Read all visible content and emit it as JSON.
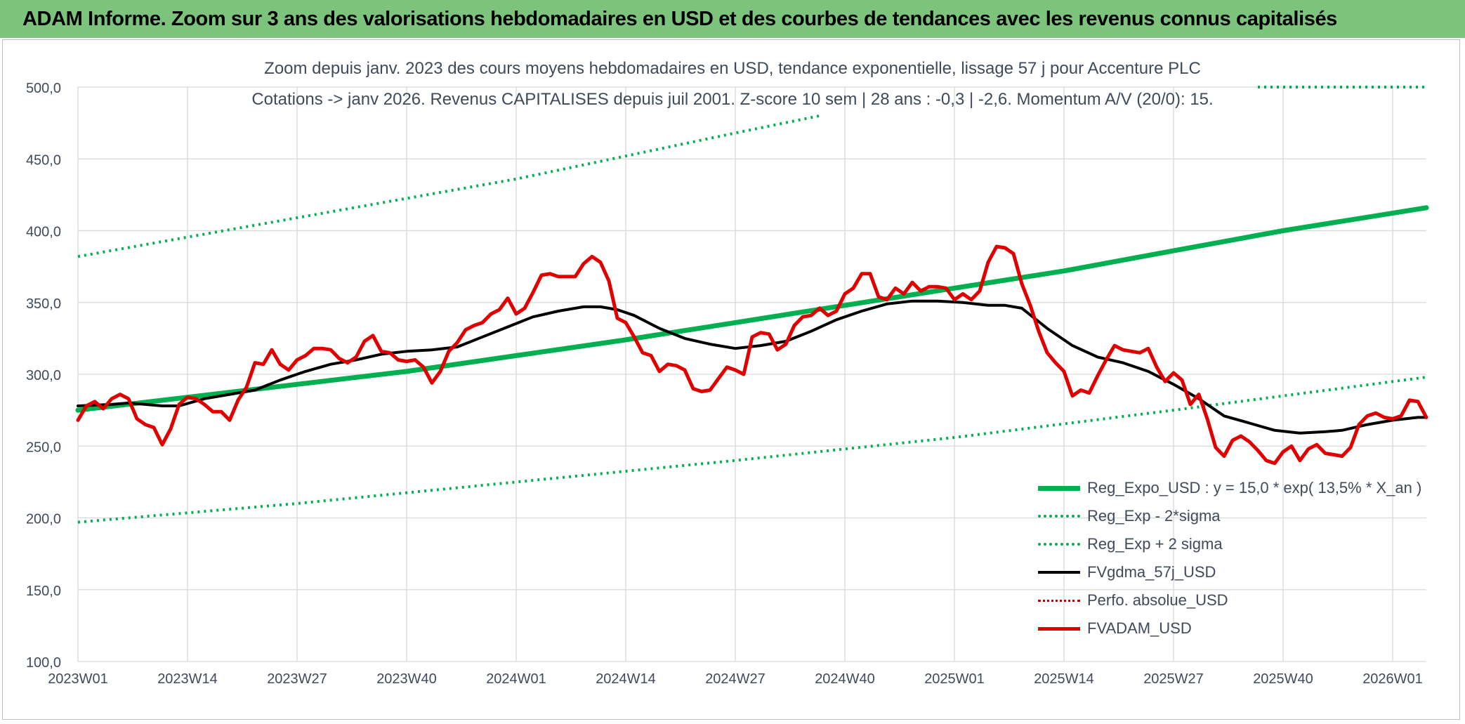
{
  "header": {
    "title": "ADAM Informe. Zoom sur 3 ans des valorisations hebdomadaires en USD et des courbes de tendances avec les revenus connus capitalisés"
  },
  "chart_data": {
    "type": "line",
    "title_line1": "Zoom depuis janv. 2023 des cours moyens hebdomadaires en USD, tendance exponentielle, lissage 57 j pour Accenture PLC",
    "title_line2": "Cotations -> janv 2026. Revenus CAPITALISES depuis juil 2001. Z-score 10 sem | 28 ans : -0,3 | -2,6. Momentum A/V (20/0): 15.",
    "ylim": [
      100,
      500
    ],
    "yticks": [
      100,
      150,
      200,
      250,
      300,
      350,
      400,
      450,
      500
    ],
    "ytick_labels": [
      "100,0",
      "150,0",
      "200,0",
      "250,0",
      "300,0",
      "350,0",
      "400,0",
      "450,0",
      "500,0"
    ],
    "x_ticks": [
      {
        "label": "2023W01",
        "week": 0
      },
      {
        "label": "2023W14",
        "week": 13
      },
      {
        "label": "2023W27",
        "week": 26
      },
      {
        "label": "2023W40",
        "week": 39
      },
      {
        "label": "2024W01",
        "week": 52
      },
      {
        "label": "2024W14",
        "week": 65
      },
      {
        "label": "2024W27",
        "week": 78
      },
      {
        "label": "2024W40",
        "week": 91
      },
      {
        "label": "2025W01",
        "week": 104
      },
      {
        "label": "2025W14",
        "week": 117
      },
      {
        "label": "2025W27",
        "week": 130
      },
      {
        "label": "2025W40",
        "week": 143
      },
      {
        "label": "2026W01",
        "week": 156
      }
    ],
    "x_range": [
      0,
      160
    ],
    "grid": true,
    "legend_position": "bottom-right",
    "series": [
      {
        "name": "Reg_Expo_USD : y = 15,0 * exp( 13,5% *  X_an )",
        "color": "#00b050",
        "style": "solid",
        "width": 7,
        "points": [
          [
            0,
            275
          ],
          [
            13,
            284
          ],
          [
            26,
            293
          ],
          [
            39,
            302
          ],
          [
            52,
            313
          ],
          [
            65,
            324
          ],
          [
            78,
            336
          ],
          [
            91,
            348
          ],
          [
            104,
            360
          ],
          [
            117,
            372
          ],
          [
            130,
            386
          ],
          [
            143,
            400
          ],
          [
            160,
            416
          ]
        ]
      },
      {
        "name": "Reg_Exp - 2*sigma",
        "color": "#00b050",
        "style": "dotted",
        "width": 4,
        "points": [
          [
            0,
            197
          ],
          [
            26,
            210
          ],
          [
            52,
            225
          ],
          [
            78,
            240
          ],
          [
            104,
            256
          ],
          [
            130,
            275
          ],
          [
            160,
            298
          ]
        ]
      },
      {
        "name": "Reg_Exp + 2 sigma",
        "color": "#00b050",
        "style": "dotted",
        "width": 4,
        "points": [
          [
            0,
            382
          ],
          [
            26,
            409
          ],
          [
            52,
            436
          ],
          [
            65,
            452
          ],
          [
            78,
            468
          ],
          [
            88,
            480
          ]
        ],
        "points_b": [
          [
            140,
            500
          ],
          [
            160,
            500
          ]
        ]
      },
      {
        "name": "FVgdma_57j_USD",
        "color": "#000000",
        "style": "solid",
        "width": 4,
        "points": [
          [
            0,
            278
          ],
          [
            4,
            279
          ],
          [
            6,
            280
          ],
          [
            8,
            279
          ],
          [
            10,
            278
          ],
          [
            12,
            278
          ],
          [
            15,
            283
          ],
          [
            18,
            286
          ],
          [
            21,
            289
          ],
          [
            24,
            296
          ],
          [
            27,
            302
          ],
          [
            30,
            307
          ],
          [
            33,
            310
          ],
          [
            36,
            314
          ],
          [
            39,
            316
          ],
          [
            42,
            317
          ],
          [
            45,
            319
          ],
          [
            48,
            326
          ],
          [
            51,
            333
          ],
          [
            54,
            340
          ],
          [
            57,
            344
          ],
          [
            60,
            347
          ],
          [
            62,
            347
          ],
          [
            64,
            345
          ],
          [
            66,
            341
          ],
          [
            69,
            332
          ],
          [
            72,
            325
          ],
          [
            75,
            321
          ],
          [
            78,
            318
          ],
          [
            81,
            320
          ],
          [
            84,
            323
          ],
          [
            87,
            330
          ],
          [
            90,
            338
          ],
          [
            93,
            344
          ],
          [
            96,
            349
          ],
          [
            99,
            351
          ],
          [
            102,
            351
          ],
          [
            105,
            350
          ],
          [
            108,
            348
          ],
          [
            110,
            348
          ],
          [
            112,
            346
          ],
          [
            115,
            332
          ],
          [
            118,
            320
          ],
          [
            121,
            312
          ],
          [
            124,
            308
          ],
          [
            127,
            302
          ],
          [
            130,
            293
          ],
          [
            133,
            283
          ],
          [
            136,
            271
          ],
          [
            139,
            266
          ],
          [
            142,
            261
          ],
          [
            145,
            259
          ],
          [
            148,
            260
          ],
          [
            150,
            261
          ],
          [
            153,
            265
          ],
          [
            156,
            268
          ],
          [
            159,
            270
          ],
          [
            160,
            270
          ]
        ]
      },
      {
        "name": "Perfo. absolue_USD",
        "color": "#c00000",
        "style": "dotted",
        "width": 3,
        "points": []
      },
      {
        "name": "FVADAM_USD",
        "color": "#e00000",
        "style": "solid",
        "width": 5,
        "points": [
          [
            0,
            268
          ],
          [
            1,
            278
          ],
          [
            2,
            281
          ],
          [
            3,
            276
          ],
          [
            4,
            283
          ],
          [
            5,
            286
          ],
          [
            6,
            283
          ],
          [
            7,
            269
          ],
          [
            8,
            265
          ],
          [
            9,
            263
          ],
          [
            10,
            251
          ],
          [
            11,
            262
          ],
          [
            12,
            279
          ],
          [
            13,
            284
          ],
          [
            14,
            283
          ],
          [
            15,
            279
          ],
          [
            16,
            274
          ],
          [
            17,
            274
          ],
          [
            18,
            268
          ],
          [
            19,
            282
          ],
          [
            20,
            291
          ],
          [
            21,
            308
          ],
          [
            22,
            307
          ],
          [
            23,
            317
          ],
          [
            24,
            307
          ],
          [
            25,
            303
          ],
          [
            26,
            310
          ],
          [
            27,
            313
          ],
          [
            28,
            318
          ],
          [
            29,
            318
          ],
          [
            30,
            317
          ],
          [
            31,
            311
          ],
          [
            32,
            308
          ],
          [
            33,
            312
          ],
          [
            34,
            323
          ],
          [
            35,
            327
          ],
          [
            36,
            316
          ],
          [
            37,
            315
          ],
          [
            38,
            310
          ],
          [
            39,
            309
          ],
          [
            40,
            310
          ],
          [
            41,
            305
          ],
          [
            42,
            294
          ],
          [
            43,
            302
          ],
          [
            44,
            316
          ],
          [
            45,
            322
          ],
          [
            46,
            331
          ],
          [
            47,
            334
          ],
          [
            48,
            336
          ],
          [
            49,
            342
          ],
          [
            50,
            345
          ],
          [
            51,
            353
          ],
          [
            52,
            342
          ],
          [
            53,
            346
          ],
          [
            54,
            357
          ],
          [
            55,
            369
          ],
          [
            56,
            370
          ],
          [
            57,
            368
          ],
          [
            58,
            368
          ],
          [
            59,
            368
          ],
          [
            60,
            377
          ],
          [
            61,
            382
          ],
          [
            62,
            378
          ],
          [
            63,
            365
          ],
          [
            64,
            339
          ],
          [
            65,
            336
          ],
          [
            66,
            326
          ],
          [
            67,
            315
          ],
          [
            68,
            313
          ],
          [
            69,
            302
          ],
          [
            70,
            307
          ],
          [
            71,
            306
          ],
          [
            72,
            303
          ],
          [
            73,
            290
          ],
          [
            74,
            288
          ],
          [
            75,
            289
          ],
          [
            76,
            297
          ],
          [
            77,
            305
          ],
          [
            78,
            303
          ],
          [
            79,
            300
          ],
          [
            80,
            326
          ],
          [
            81,
            329
          ],
          [
            82,
            328
          ],
          [
            83,
            317
          ],
          [
            84,
            321
          ],
          [
            85,
            334
          ],
          [
            86,
            340
          ],
          [
            87,
            341
          ],
          [
            88,
            346
          ],
          [
            89,
            341
          ],
          [
            90,
            344
          ],
          [
            91,
            356
          ],
          [
            92,
            360
          ],
          [
            93,
            370
          ],
          [
            94,
            370
          ],
          [
            95,
            354
          ],
          [
            96,
            352
          ],
          [
            97,
            360
          ],
          [
            98,
            356
          ],
          [
            99,
            364
          ],
          [
            100,
            358
          ],
          [
            101,
            361
          ],
          [
            102,
            361
          ],
          [
            103,
            360
          ],
          [
            104,
            352
          ],
          [
            105,
            356
          ],
          [
            106,
            352
          ],
          [
            107,
            358
          ],
          [
            108,
            378
          ],
          [
            109,
            389
          ],
          [
            110,
            388
          ],
          [
            111,
            384
          ],
          [
            112,
            363
          ],
          [
            113,
            348
          ],
          [
            114,
            330
          ],
          [
            115,
            315
          ],
          [
            116,
            308
          ],
          [
            117,
            302
          ],
          [
            118,
            285
          ],
          [
            119,
            289
          ],
          [
            120,
            287
          ],
          [
            121,
            299
          ],
          [
            122,
            310
          ],
          [
            123,
            320
          ],
          [
            124,
            317
          ],
          [
            125,
            316
          ],
          [
            126,
            315
          ],
          [
            127,
            318
          ],
          [
            128,
            305
          ],
          [
            129,
            295
          ],
          [
            130,
            301
          ],
          [
            131,
            296
          ],
          [
            132,
            279
          ],
          [
            133,
            286
          ],
          [
            134,
            269
          ],
          [
            135,
            249
          ],
          [
            136,
            243
          ],
          [
            137,
            254
          ],
          [
            138,
            257
          ],
          [
            139,
            253
          ],
          [
            140,
            247
          ],
          [
            141,
            240
          ],
          [
            142,
            238
          ],
          [
            143,
            246
          ],
          [
            144,
            250
          ],
          [
            145,
            240
          ],
          [
            146,
            248
          ],
          [
            147,
            251
          ],
          [
            148,
            245
          ],
          [
            149,
            244
          ],
          [
            150,
            243
          ],
          [
            151,
            249
          ],
          [
            152,
            265
          ],
          [
            153,
            271
          ],
          [
            154,
            273
          ],
          [
            155,
            270
          ],
          [
            156,
            269
          ],
          [
            157,
            271
          ],
          [
            158,
            282
          ],
          [
            159,
            281
          ],
          [
            160,
            270
          ]
        ]
      }
    ]
  }
}
